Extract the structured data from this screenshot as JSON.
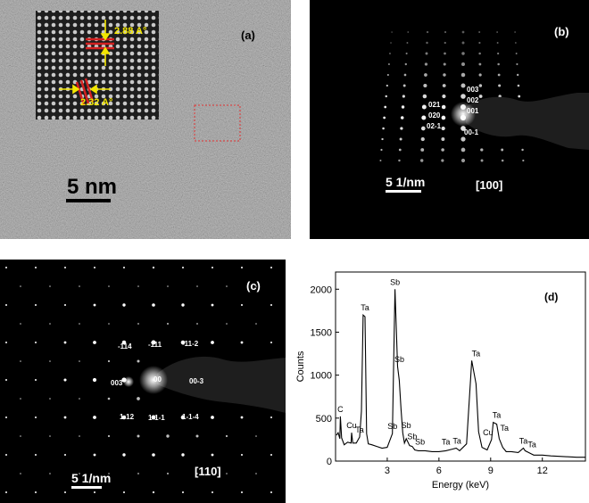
{
  "panel_a": {
    "label": "(a)",
    "spacing_top": "2.88 A°",
    "spacing_bottom": "2.32 A°",
    "scale_bar": "5 nm"
  },
  "panel_b": {
    "label": "(b)",
    "spots": [
      "021",
      "020",
      "02-1",
      "003",
      "002",
      "001",
      "00-1"
    ],
    "scale_bar": "5 1/nm",
    "zone_axis": "[100]"
  },
  "panel_c": {
    "label": "(c)",
    "spots": [
      "-114",
      "-111",
      "-11-2",
      "003",
      "00",
      "00-3",
      "1-12",
      "1-1-1",
      "1-1-4"
    ],
    "scale_bar": "5 1/nm",
    "zone_axis": "[110]"
  },
  "chart_data": {
    "type": "line",
    "panel_label": "(d)",
    "xlabel": "Energy (keV)",
    "ylabel": "Counts",
    "xlim": [
      0,
      14.5
    ],
    "ylim": [
      0,
      2200
    ],
    "xticks": [
      3,
      6,
      9,
      12
    ],
    "yticks": [
      0,
      500,
      1000,
      1500,
      2000
    ],
    "series": [
      {
        "x": [
          0.05,
          0.15,
          0.25,
          0.28,
          0.35,
          0.5,
          0.7,
          0.9,
          0.93,
          1.0,
          1.2,
          1.4,
          1.5,
          1.6,
          1.71,
          1.8,
          1.9,
          2.1,
          2.4,
          2.7,
          3.0,
          3.3,
          3.45,
          3.6,
          3.7,
          3.8,
          3.9,
          4.0,
          4.1,
          4.2,
          4.3,
          4.45,
          4.6,
          4.8,
          5.2,
          5.6,
          6.0,
          6.4,
          6.8,
          7.0,
          7.2,
          7.6,
          7.9,
          8.15,
          8.3,
          8.5,
          8.8,
          9.05,
          9.15,
          9.35,
          9.5,
          9.7,
          9.9,
          10.2,
          10.6,
          10.9,
          11.0,
          11.2,
          11.5,
          12.0,
          12.5,
          13.0,
          13.5,
          14.0,
          14.5
        ],
        "y": [
          300,
          330,
          260,
          520,
          270,
          190,
          220,
          210,
          330,
          210,
          210,
          280,
          580,
          1700,
          1680,
          320,
          200,
          190,
          170,
          150,
          160,
          320,
          2000,
          1100,
          940,
          600,
          330,
          210,
          260,
          220,
          180,
          170,
          130,
          120,
          120,
          110,
          110,
          120,
          140,
          150,
          120,
          200,
          1170,
          900,
          340,
          160,
          130,
          250,
          450,
          430,
          260,
          160,
          110,
          110,
          100,
          150,
          120,
          100,
          70,
          70,
          60,
          55,
          50,
          45,
          45
        ]
      }
    ],
    "peak_labels": [
      {
        "text": "C",
        "x": 0.28,
        "y": 520
      },
      {
        "text": "Cu",
        "x": 0.93,
        "y": 330
      },
      {
        "text": "Ta",
        "x": 1.4,
        "y": 280
      },
      {
        "text": "Ta",
        "x": 1.71,
        "y": 1700
      },
      {
        "text": "Sb",
        "x": 3.3,
        "y": 320
      },
      {
        "text": "Sb",
        "x": 3.45,
        "y": 2000
      },
      {
        "text": "Sb",
        "x": 3.7,
        "y": 1100
      },
      {
        "text": "Sb",
        "x": 4.1,
        "y": 330
      },
      {
        "text": "Sb",
        "x": 4.45,
        "y": 200
      },
      {
        "text": "Sb",
        "x": 4.9,
        "y": 140
      },
      {
        "text": "Ta",
        "x": 6.4,
        "y": 140
      },
      {
        "text": "Ta",
        "x": 7.05,
        "y": 150
      },
      {
        "text": "Ta",
        "x": 8.15,
        "y": 1170
      },
      {
        "text": "Cu",
        "x": 8.85,
        "y": 250
      },
      {
        "text": "Ta",
        "x": 9.35,
        "y": 450
      },
      {
        "text": "Ta",
        "x": 9.8,
        "y": 300
      },
      {
        "text": "Ta",
        "x": 10.9,
        "y": 150
      },
      {
        "text": "Ta",
        "x": 11.4,
        "y": 110
      }
    ]
  }
}
